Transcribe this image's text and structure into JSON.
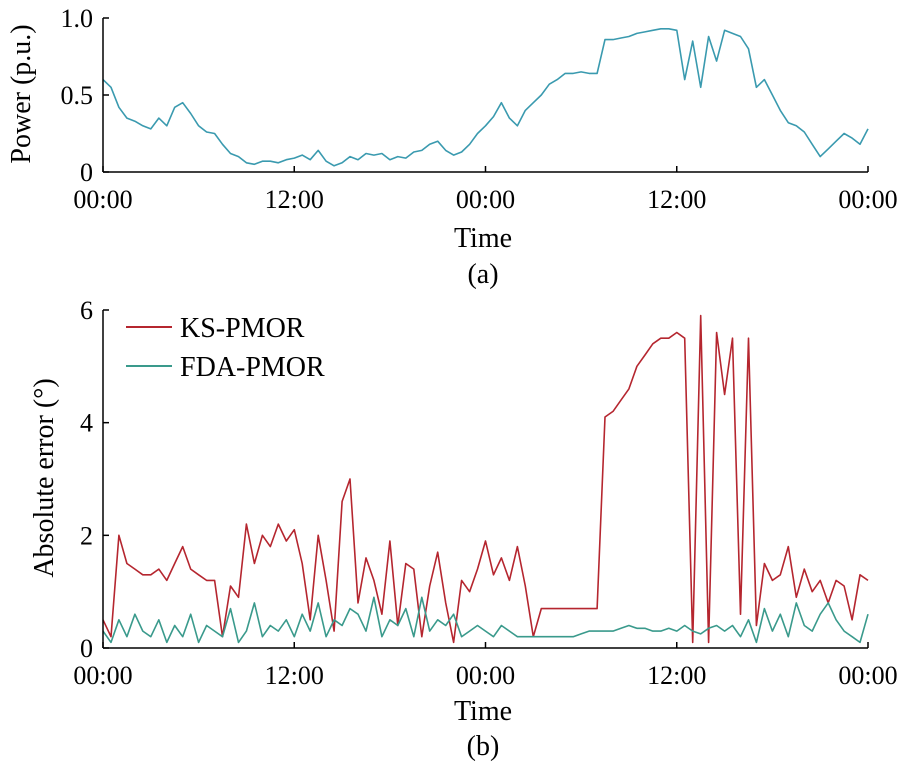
{
  "chart_data": [
    {
      "type": "line",
      "panel_label": "(a)",
      "xlabel": "Time",
      "ylabel": "Power (p.u.)",
      "x_ticks": [
        "00:00",
        "12:00",
        "00:00",
        "12:00",
        "00:00"
      ],
      "x_tick_hours": [
        0,
        12,
        24,
        36,
        48
      ],
      "y_ticks": [
        "0",
        "0.5",
        "1.0"
      ],
      "y_tick_values": [
        0,
        0.5,
        1.0
      ],
      "xlim": [
        0,
        48
      ],
      "ylim": [
        0,
        1.0
      ],
      "grid": false,
      "series": [
        {
          "color": "#3a9aaf",
          "x": [
            0,
            0.5,
            1,
            1.5,
            2,
            2.5,
            3,
            3.5,
            4,
            4.5,
            5,
            5.5,
            6,
            6.5,
            7,
            7.5,
            8,
            8.5,
            9,
            9.5,
            10,
            10.5,
            11,
            11.5,
            12,
            12.5,
            13,
            13.5,
            14,
            14.5,
            15,
            15.5,
            16,
            16.5,
            17,
            17.5,
            18,
            18.5,
            19,
            19.5,
            20,
            20.5,
            21,
            21.5,
            22,
            22.5,
            23,
            23.5,
            24,
            24.5,
            25,
            25.5,
            26,
            26.5,
            27,
            27.5,
            28,
            28.5,
            29,
            29.5,
            30,
            30.5,
            31,
            31.5,
            32,
            32.5,
            33,
            33.5,
            34,
            34.5,
            35,
            35.5,
            36,
            36.5,
            37,
            37.5,
            38,
            38.5,
            39,
            39.5,
            40,
            40.5,
            41,
            41.5,
            42,
            42.5,
            43,
            43.5,
            44,
            44.5,
            45,
            45.5,
            46,
            46.5,
            47,
            47.5,
            48
          ],
          "values": [
            0.6,
            0.55,
            0.42,
            0.35,
            0.33,
            0.3,
            0.28,
            0.35,
            0.3,
            0.42,
            0.45,
            0.38,
            0.3,
            0.26,
            0.25,
            0.18,
            0.12,
            0.1,
            0.06,
            0.05,
            0.07,
            0.07,
            0.06,
            0.08,
            0.09,
            0.11,
            0.08,
            0.14,
            0.07,
            0.04,
            0.06,
            0.1,
            0.08,
            0.12,
            0.11,
            0.12,
            0.08,
            0.1,
            0.09,
            0.13,
            0.14,
            0.18,
            0.2,
            0.14,
            0.11,
            0.13,
            0.18,
            0.25,
            0.3,
            0.36,
            0.45,
            0.35,
            0.3,
            0.4,
            0.45,
            0.5,
            0.57,
            0.6,
            0.64,
            0.64,
            0.65,
            0.64,
            0.64,
            0.86,
            0.86,
            0.87,
            0.88,
            0.9,
            0.91,
            0.92,
            0.93,
            0.93,
            0.92,
            0.6,
            0.85,
            0.55,
            0.88,
            0.72,
            0.92,
            0.9,
            0.88,
            0.8,
            0.55,
            0.6,
            0.5,
            0.4,
            0.32,
            0.3,
            0.26,
            0.18,
            0.1,
            0.15,
            0.2,
            0.25,
            0.22,
            0.18,
            0.28
          ]
        }
      ]
    },
    {
      "type": "line",
      "panel_label": "(b)",
      "xlabel": "Time",
      "ylabel": "Absolute error (°)",
      "x_ticks": [
        "00:00",
        "12:00",
        "00:00",
        "12:00",
        "00:00"
      ],
      "x_tick_hours": [
        0,
        12,
        24,
        36,
        48
      ],
      "y_ticks": [
        "0",
        "2",
        "4",
        "6"
      ],
      "y_tick_values": [
        0,
        2,
        4,
        6
      ],
      "xlim": [
        0,
        48
      ],
      "ylim": [
        0,
        6
      ],
      "grid": false,
      "legend_position": "top-left",
      "series": [
        {
          "name": "KS-PMOR",
          "color": "#b5262f",
          "x": [
            0,
            0.5,
            1,
            1.5,
            2,
            2.5,
            3,
            3.5,
            4,
            4.5,
            5,
            5.5,
            6,
            6.5,
            7,
            7.5,
            8,
            8.5,
            9,
            9.5,
            10,
            10.5,
            11,
            11.5,
            12,
            12.5,
            13,
            13.5,
            14,
            14.5,
            15,
            15.5,
            16,
            16.5,
            17,
            17.5,
            18,
            18.5,
            19,
            19.5,
            20,
            20.5,
            21,
            21.5,
            22,
            22.5,
            23,
            23.5,
            24,
            24.5,
            25,
            25.5,
            26,
            26.5,
            27,
            27.5,
            28,
            28.5,
            29,
            29.5,
            30,
            30.5,
            31,
            31.5,
            32,
            32.5,
            33,
            33.5,
            34,
            34.5,
            35,
            35.5,
            36,
            36.5,
            37,
            37.5,
            38,
            38.5,
            39,
            39.5,
            40,
            40.5,
            41,
            41.5,
            42,
            42.5,
            43,
            43.5,
            44,
            44.5,
            45,
            45.5,
            46,
            46.5,
            47,
            47.5,
            48
          ],
          "values": [
            0.5,
            0.2,
            2.0,
            1.5,
            1.4,
            1.3,
            1.3,
            1.4,
            1.2,
            1.5,
            1.8,
            1.4,
            1.3,
            1.2,
            1.2,
            0.2,
            1.1,
            0.9,
            2.2,
            1.5,
            2.0,
            1.8,
            2.2,
            1.9,
            2.1,
            1.5,
            0.5,
            2.0,
            1.2,
            0.3,
            2.6,
            3.0,
            0.8,
            1.6,
            1.2,
            0.6,
            1.9,
            0.4,
            1.5,
            1.4,
            0.2,
            1.1,
            1.7,
            0.8,
            0.1,
            1.2,
            1.0,
            1.4,
            1.9,
            1.3,
            1.6,
            1.2,
            1.8,
            1.1,
            0.2,
            0.7,
            0.7,
            0.7,
            0.7,
            0.7,
            0.7,
            0.7,
            0.7,
            4.1,
            4.2,
            4.4,
            4.6,
            5.0,
            5.2,
            5.4,
            5.5,
            5.5,
            5.6,
            5.5,
            0.1,
            5.9,
            0.1,
            5.6,
            4.5,
            5.5,
            0.6,
            5.5,
            0.4,
            1.5,
            1.2,
            1.3,
            1.8,
            0.9,
            1.4,
            1.0,
            1.2,
            0.8,
            1.2,
            1.1,
            0.5,
            1.3,
            1.2
          ]
        },
        {
          "name": "FDA-PMOR",
          "color": "#3a9a8c",
          "x": [
            0,
            0.5,
            1,
            1.5,
            2,
            2.5,
            3,
            3.5,
            4,
            4.5,
            5,
            5.5,
            6,
            6.5,
            7,
            7.5,
            8,
            8.5,
            9,
            9.5,
            10,
            10.5,
            11,
            11.5,
            12,
            12.5,
            13,
            13.5,
            14,
            14.5,
            15,
            15.5,
            16,
            16.5,
            17,
            17.5,
            18,
            18.5,
            19,
            19.5,
            20,
            20.5,
            21,
            21.5,
            22,
            22.5,
            23,
            23.5,
            24,
            24.5,
            25,
            25.5,
            26,
            26.5,
            27,
            27.5,
            28,
            28.5,
            29,
            29.5,
            30,
            30.5,
            31,
            31.5,
            32,
            32.5,
            33,
            33.5,
            34,
            34.5,
            35,
            35.5,
            36,
            36.5,
            37,
            37.5,
            38,
            38.5,
            39,
            39.5,
            40,
            40.5,
            41,
            41.5,
            42,
            42.5,
            43,
            43.5,
            44,
            44.5,
            45,
            45.5,
            46,
            46.5,
            47,
            47.5,
            48
          ],
          "values": [
            0.3,
            0.1,
            0.5,
            0.2,
            0.6,
            0.3,
            0.2,
            0.5,
            0.1,
            0.4,
            0.2,
            0.6,
            0.1,
            0.4,
            0.3,
            0.2,
            0.7,
            0.1,
            0.3,
            0.8,
            0.2,
            0.4,
            0.3,
            0.5,
            0.2,
            0.6,
            0.3,
            0.8,
            0.2,
            0.5,
            0.4,
            0.7,
            0.6,
            0.3,
            0.9,
            0.2,
            0.5,
            0.4,
            0.7,
            0.2,
            0.9,
            0.3,
            0.5,
            0.4,
            0.6,
            0.2,
            0.3,
            0.4,
            0.3,
            0.2,
            0.4,
            0.3,
            0.2,
            0.2,
            0.2,
            0.2,
            0.2,
            0.2,
            0.2,
            0.2,
            0.25,
            0.3,
            0.3,
            0.3,
            0.3,
            0.35,
            0.4,
            0.35,
            0.35,
            0.3,
            0.3,
            0.35,
            0.3,
            0.4,
            0.3,
            0.25,
            0.35,
            0.4,
            0.3,
            0.4,
            0.2,
            0.5,
            0.1,
            0.7,
            0.3,
            0.6,
            0.2,
            0.8,
            0.4,
            0.3,
            0.6,
            0.8,
            0.5,
            0.3,
            0.2,
            0.1,
            0.6
          ]
        }
      ]
    }
  ]
}
